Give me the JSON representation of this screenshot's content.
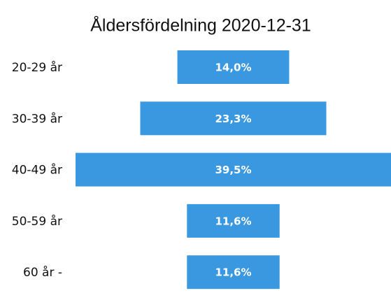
{
  "chart_data": {
    "type": "funnel",
    "title": "Åldersfördelning 2020-12-31",
    "categories": [
      "20-29 år",
      "30-39 år",
      "40-49 år",
      "50-59 år",
      "60 år -"
    ],
    "values": [
      14.0,
      23.3,
      39.5,
      11.6,
      11.6
    ],
    "value_labels": [
      "14,0%",
      "23,3%",
      "39,5%",
      "11,6%",
      "11,6%"
    ],
    "color": "#3a98e0"
  }
}
